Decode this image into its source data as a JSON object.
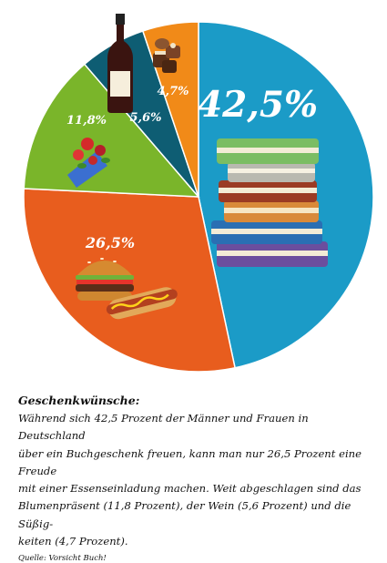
{
  "chart_data": {
    "type": "pie",
    "slices": [
      {
        "label": "Buchgeschenk",
        "value": 42.5,
        "display": "42,5%",
        "color": "#1b9bc7"
      },
      {
        "label": "Essenseinladung",
        "value": 26.5,
        "display": "26,5%",
        "color": "#e85d1e"
      },
      {
        "label": "Blumenpräsent",
        "value": 11.8,
        "display": "11,8%",
        "color": "#7ab52a"
      },
      {
        "label": "Wein",
        "value": 5.6,
        "display": "5,6%",
        "color": "#0e5d73"
      },
      {
        "label": "Süßigkeiten",
        "value": 4.7,
        "display": "4,7%",
        "color": "#f18a18"
      }
    ],
    "icons": [
      "books-icon",
      "burger-hotdog-icon",
      "flowers-bouquet-icon",
      "wine-bottle-icon",
      "pralines-icon"
    ]
  },
  "caption": {
    "title": "Geschenkwünsche:",
    "lines": [
      "Während sich 42,5 Prozent der Männer und Frauen in Deutschland",
      "über ein Buchgeschenk freuen, kann man nur 26,5 Prozent eine Freude",
      "mit einer Essenseinladung machen. Weit abgeschlagen sind das",
      "Blumenpräsent (11,8 Prozent), der Wein (5,6 Prozent) und die Süßig-",
      "keiten (4,7 Prozent)."
    ],
    "source": "Quelle: Vorsicht Buch!"
  }
}
